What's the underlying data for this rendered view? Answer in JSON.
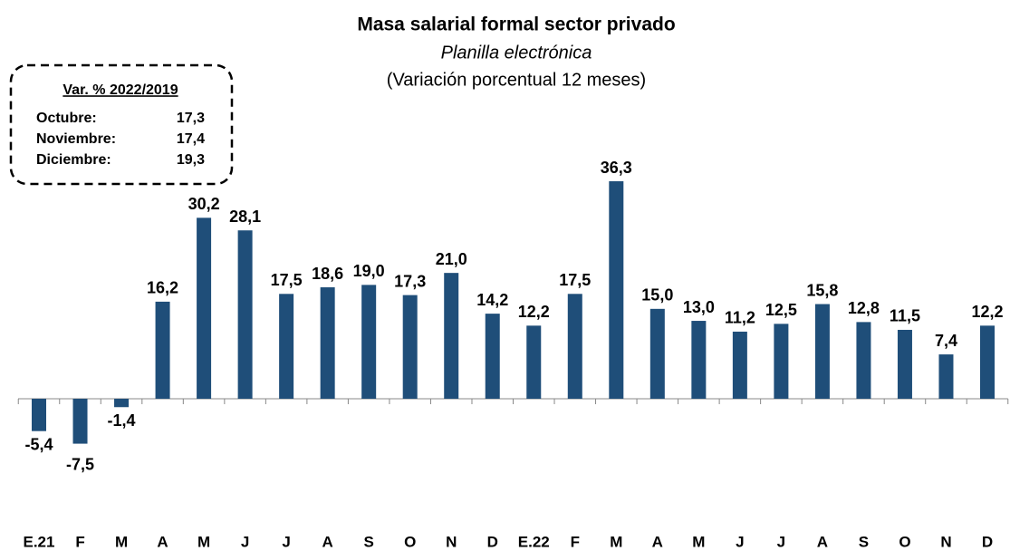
{
  "chart_data": {
    "type": "bar",
    "title": "Masa salarial formal sector privado",
    "subtitle": "Planilla electrónica",
    "subtitle2": "(Variación porcentual 12 meses)",
    "categories": [
      "E.21",
      "F",
      "M",
      "A",
      "M",
      "J",
      "J",
      "A",
      "S",
      "O",
      "N",
      "D",
      "E.22",
      "F",
      "M",
      "A",
      "M",
      "J",
      "J",
      "A",
      "S",
      "O",
      "N",
      "D"
    ],
    "values": [
      -5.4,
      -7.5,
      -1.4,
      16.2,
      30.2,
      28.1,
      17.5,
      18.6,
      19.0,
      17.3,
      21.0,
      14.2,
      12.2,
      17.5,
      36.3,
      15.0,
      13.0,
      11.2,
      12.5,
      15.8,
      12.8,
      11.5,
      7.4,
      12.2
    ],
    "value_labels": [
      "-5,4",
      "-7,5",
      "-1,4",
      "16,2",
      "30,2",
      "28,1",
      "17,5",
      "18,6",
      "19,0",
      "17,3",
      "21,0",
      "14,2",
      "12,2",
      "17,5",
      "36,3",
      "15,0",
      "13,0",
      "11,2",
      "12,5",
      "15,8",
      "12,8",
      "11,5",
      "7,4",
      "12,2"
    ],
    "color": "#1f4e79",
    "annotation": {
      "title": "Var. % 2022/2019",
      "rows": [
        [
          "Octubre:",
          "17,3"
        ],
        [
          "Noviembre:",
          "17,4"
        ],
        [
          "Diciembre:",
          "19,3"
        ]
      ]
    }
  }
}
